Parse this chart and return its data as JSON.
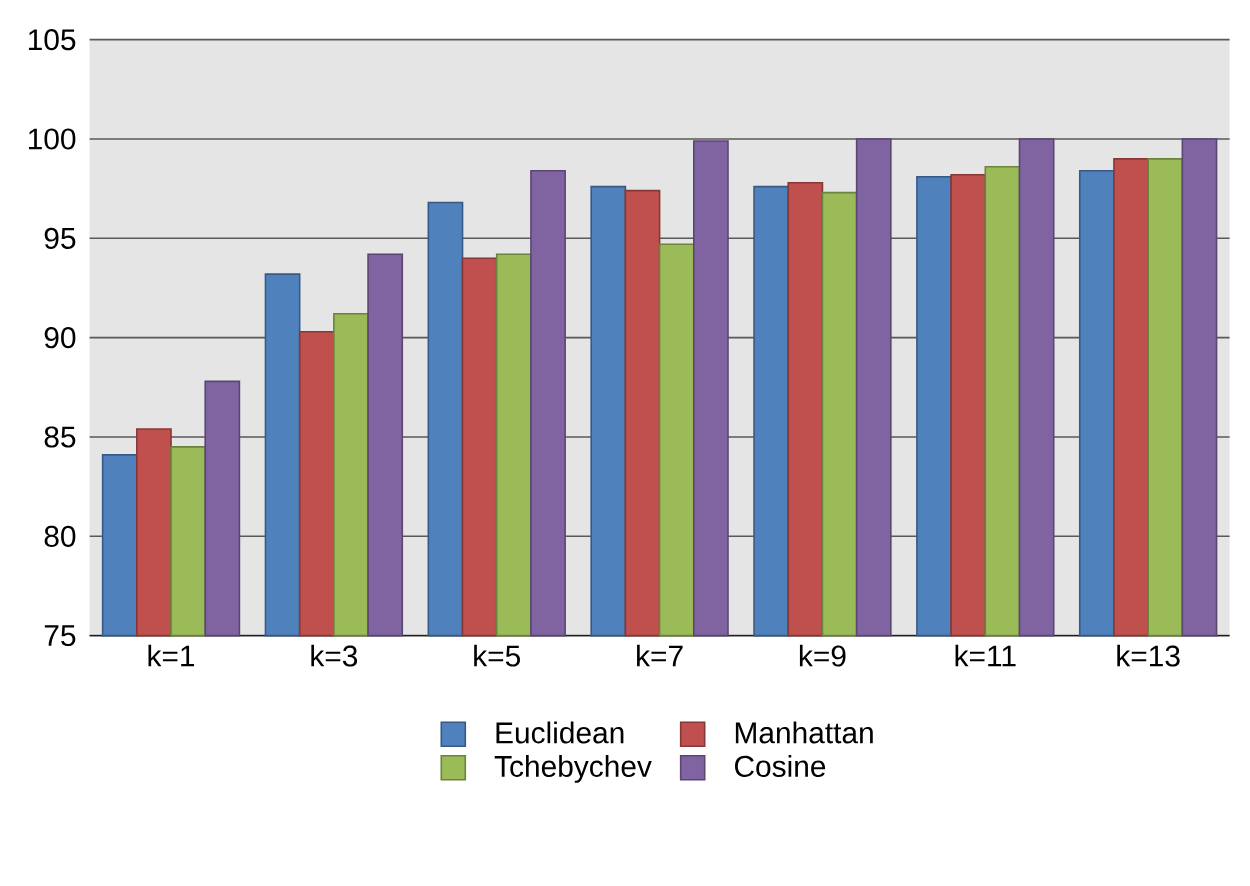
{
  "chart_data": {
    "type": "bar",
    "categories": [
      "k=1",
      "k=3",
      "k=5",
      "k=7",
      "k=9",
      "k=11",
      "k=13"
    ],
    "series": [
      {
        "name": "Euclidean",
        "color": "#4f81bd",
        "values": [
          84.1,
          93.2,
          96.8,
          97.6,
          97.6,
          98.1,
          98.4
        ]
      },
      {
        "name": "Manhattan",
        "color": "#c0504d",
        "values": [
          85.4,
          90.3,
          94.0,
          97.4,
          97.8,
          98.2,
          99.0
        ]
      },
      {
        "name": "Tchebychev",
        "color": "#9bbb59",
        "values": [
          84.5,
          91.2,
          94.2,
          94.7,
          97.3,
          98.6,
          99.0
        ]
      },
      {
        "name": "Cosine",
        "color": "#8064a2",
        "values": [
          87.8,
          94.2,
          98.4,
          99.9,
          100,
          100,
          100
        ]
      }
    ],
    "ylim": [
      75,
      105
    ],
    "yticks": [
      75,
      80,
      85,
      90,
      95,
      100,
      105
    ],
    "grid": "y",
    "legend": "bottom"
  }
}
